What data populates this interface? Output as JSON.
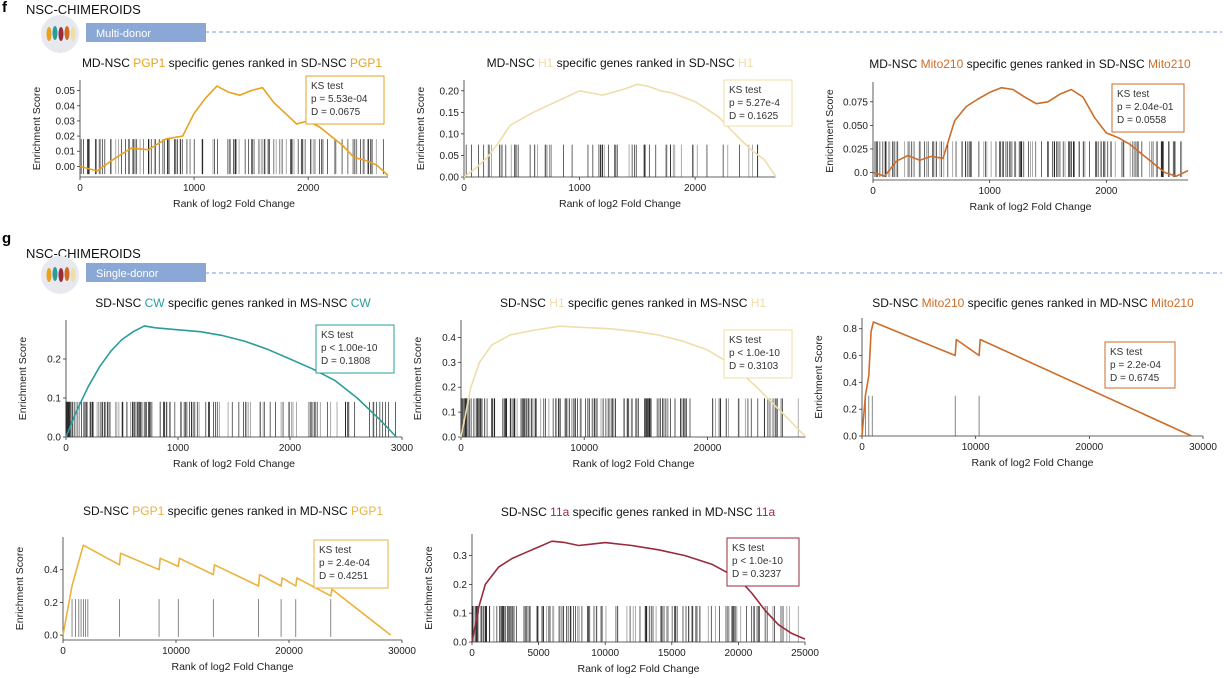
{
  "sections": [
    {
      "letter": "f",
      "title": "NSC-CHIMEROIDS",
      "pill": "Multi-donor"
    },
    {
      "letter": "g",
      "title": "NSC-CHIMEROIDS",
      "pill": "Single-donor"
    }
  ],
  "chart_data": [
    {
      "type": "line",
      "title_parts": [
        "MD-NSC ",
        "PGP1",
        " specific genes ranked in SD-NSC ",
        "PGP1"
      ],
      "color": "#E8A21F",
      "xlabel": "Rank of log2 Fold Change",
      "ylabel": "Enrichment Score",
      "xlim": [
        0,
        2700
      ],
      "ylim": [
        -0.007,
        0.057
      ],
      "xticks": [
        0,
        1000,
        2000
      ],
      "xtick_labels": [
        "0",
        "1000",
        "2000"
      ],
      "yticks": [
        0,
        0.01,
        0.02,
        0.03,
        0.04,
        0.05
      ],
      "ytick_labels": [
        "0.00",
        "0.01",
        "0.02",
        "0.03",
        "0.04",
        "0.05"
      ],
      "x": [
        0,
        150,
        300,
        450,
        600,
        750,
        900,
        1000,
        1100,
        1200,
        1300,
        1400,
        1500,
        1600,
        1700,
        1800,
        1900,
        2000,
        2100,
        2200,
        2300,
        2400,
        2500,
        2600,
        2700
      ],
      "y": [
        0.0,
        -0.003,
        0.005,
        0.012,
        0.011,
        0.018,
        0.02,
        0.035,
        0.045,
        0.053,
        0.049,
        0.047,
        0.05,
        0.052,
        0.042,
        0.035,
        0.028,
        0.03,
        0.026,
        0.02,
        0.014,
        0.006,
        0.004,
        0.001,
        -0.006
      ],
      "ks_test": {
        "label": "KS test",
        "p": "p = 5.53e-04",
        "D": "D = 0.0675"
      }
    },
    {
      "type": "line",
      "title_parts": [
        "MD-NSC ",
        "H1",
        " specific genes ranked in SD-NSC ",
        "H1"
      ],
      "color": "#EFDDAA",
      "xlabel": "Rank of log2 Fold Change",
      "ylabel": "Enrichment Score",
      "xlim": [
        0,
        2700
      ],
      "ylim": [
        0,
        0.225
      ],
      "xticks": [
        0,
        1000,
        2000
      ],
      "xtick_labels": [
        "0",
        "1000",
        "2000"
      ],
      "yticks": [
        0,
        0.05,
        0.1,
        0.15,
        0.2
      ],
      "ytick_labels": [
        "0.00",
        "0.05",
        "0.10",
        "0.15",
        "0.20"
      ],
      "x": [
        0,
        100,
        200,
        300,
        400,
        600,
        800,
        1000,
        1200,
        1400,
        1500,
        1600,
        1700,
        1800,
        2000,
        2200,
        2400,
        2500,
        2600,
        2700
      ],
      "y": [
        0.0,
        0.02,
        0.045,
        0.08,
        0.12,
        0.15,
        0.175,
        0.2,
        0.19,
        0.205,
        0.215,
        0.21,
        0.2,
        0.195,
        0.175,
        0.14,
        0.085,
        0.06,
        0.04,
        0.0
      ],
      "ks_test": {
        "label": "KS test",
        "p": "p = 5.27e-4",
        "D": "D = 0.1625"
      }
    },
    {
      "type": "line",
      "title_parts": [
        "MD-NSC ",
        "Mito210",
        " specific genes ranked in SD-NSC ",
        "Mito210"
      ],
      "color": "#CD6D2A",
      "xlabel": "Rank of log2 Fold Change",
      "ylabel": "Enrichment Score",
      "xlim": [
        0,
        2700
      ],
      "ylim": [
        -0.008,
        0.096
      ],
      "xticks": [
        0,
        1000,
        2000
      ],
      "xtick_labels": [
        "0",
        "1000",
        "2000"
      ],
      "yticks": [
        0,
        0.025,
        0.05,
        0.075
      ],
      "ytick_labels": [
        "0.0",
        "0.025",
        "0.050",
        "0.075"
      ],
      "x": [
        0,
        100,
        200,
        300,
        400,
        500,
        600,
        700,
        800,
        900,
        1000,
        1100,
        1200,
        1300,
        1400,
        1500,
        1600,
        1700,
        1800,
        1900,
        2000,
        2100,
        2200,
        2300,
        2400,
        2500,
        2600,
        2700
      ],
      "y": [
        0.0,
        -0.004,
        0.012,
        0.018,
        0.013,
        0.017,
        0.015,
        0.055,
        0.07,
        0.078,
        0.085,
        0.09,
        0.088,
        0.08,
        0.073,
        0.075,
        0.083,
        0.088,
        0.08,
        0.058,
        0.042,
        0.037,
        0.03,
        0.02,
        0.01,
        0.0,
        -0.004,
        0.002
      ],
      "ks_test": {
        "label": "KS test",
        "p": "p = 2.04e-01",
        "D": "D = 0.0558"
      }
    },
    {
      "type": "line",
      "title_parts": [
        "SD-NSC ",
        "CW",
        " specific genes ranked in MS-NSC ",
        "CW"
      ],
      "color": "#2A9D9B",
      "xlabel": "Rank of log2 Fold Change",
      "ylabel": "Enrichment Score",
      "xlim": [
        0,
        3000
      ],
      "ylim": [
        0,
        0.3
      ],
      "xticks": [
        0,
        1000,
        2000,
        3000
      ],
      "xtick_labels": [
        "0",
        "1000",
        "2000",
        "3000"
      ],
      "yticks": [
        0,
        0.1,
        0.2
      ],
      "ytick_labels": [
        "0.0",
        "0.1",
        "0.2"
      ],
      "x": [
        0,
        100,
        200,
        300,
        400,
        500,
        600,
        700,
        800,
        1000,
        1200,
        1400,
        1600,
        1800,
        2000,
        2200,
        2400,
        2600,
        2800,
        2950
      ],
      "y": [
        0.0,
        0.07,
        0.13,
        0.18,
        0.22,
        0.25,
        0.27,
        0.285,
        0.28,
        0.275,
        0.27,
        0.26,
        0.245,
        0.225,
        0.2,
        0.175,
        0.145,
        0.1,
        0.045,
        0.0
      ],
      "ks_test": {
        "label": "KS test",
        "p": "p < 1.00e-10",
        "D": "D = 0.1808"
      }
    },
    {
      "type": "line",
      "title_parts": [
        "SD-NSC ",
        "H1",
        " specific genes ranked in MS-NSC ",
        "H1"
      ],
      "color": "#EFDDAA",
      "xlabel": "Rank of log2 Fold Change",
      "ylabel": "Enrichment Score",
      "xlim": [
        0,
        28000
      ],
      "ylim": [
        0,
        0.47
      ],
      "xticks": [
        0,
        10000,
        20000
      ],
      "xtick_labels": [
        "0",
        "10000",
        "20000"
      ],
      "yticks": [
        0,
        0.1,
        0.2,
        0.3,
        0.4
      ],
      "ytick_labels": [
        "0.0",
        "0.1",
        "0.2",
        "0.3",
        "0.4"
      ],
      "x": [
        0,
        800,
        1500,
        2500,
        4000,
        6000,
        8000,
        10000,
        12000,
        14000,
        16000,
        18000,
        20000,
        22000,
        24000,
        26000,
        28000
      ],
      "y": [
        0.0,
        0.2,
        0.3,
        0.37,
        0.41,
        0.43,
        0.445,
        0.44,
        0.435,
        0.425,
        0.41,
        0.385,
        0.35,
        0.29,
        0.2,
        0.1,
        0.0
      ],
      "ks_test": {
        "label": "KS test",
        "p": "p < 1.0e-10",
        "D": "D = 0.3103"
      }
    },
    {
      "type": "line",
      "title_parts": [
        "SD-NSC ",
        "Mito210",
        " specific genes ranked in MD-NSC ",
        "Mito210"
      ],
      "color": "#CD6D2A",
      "xlabel": "Rank of log2 Fold Change",
      "ylabel": "Enrichment Score",
      "xlim": [
        0,
        30000
      ],
      "ylim": [
        0,
        0.88
      ],
      "xticks": [
        0,
        10000,
        20000,
        30000
      ],
      "xtick_labels": [
        "0",
        "10000",
        "20000",
        "30000"
      ],
      "yticks": [
        0,
        0.2,
        0.4,
        0.6,
        0.8
      ],
      "ytick_labels": [
        "0.0",
        "0.2",
        "0.4",
        "0.6",
        "0.8"
      ],
      "x": [
        0,
        300,
        600,
        800,
        1000,
        8200,
        8300,
        10300,
        10400,
        29000
      ],
      "y": [
        0.0,
        0.3,
        0.45,
        0.78,
        0.85,
        0.6,
        0.72,
        0.6,
        0.72,
        0.0
      ],
      "ks_test": {
        "label": "KS test",
        "p": "p = 2.2e-04",
        "D": "D = 0.6745"
      }
    },
    {
      "type": "line",
      "title_parts": [
        "SD-NSC ",
        "PGP1",
        " specific genes ranked in MD-NSC ",
        "PGP1"
      ],
      "color": "#EBB23E",
      "xlabel": "Rank of log2 Fold Change",
      "ylabel": "Enrichment Score",
      "xlim": [
        0,
        30000
      ],
      "ylim": [
        -0.03,
        0.6
      ],
      "xticks": [
        0,
        10000,
        20000,
        30000
      ],
      "xtick_labels": [
        "0",
        "10000",
        "20000",
        "30000"
      ],
      "yticks": [
        0,
        0.2,
        0.4
      ],
      "ytick_labels": [
        "0.0",
        "0.2",
        "0.4"
      ],
      "x": [
        0,
        800,
        1800,
        5000,
        5100,
        8500,
        8600,
        10200,
        10300,
        13300,
        13400,
        17300,
        17400,
        19300,
        19400,
        20600,
        20700,
        23700,
        23800,
        29000
      ],
      "y": [
        0.0,
        0.3,
        0.55,
        0.43,
        0.5,
        0.4,
        0.47,
        0.42,
        0.47,
        0.37,
        0.43,
        0.3,
        0.37,
        0.3,
        0.35,
        0.3,
        0.35,
        0.24,
        0.28,
        0.0
      ],
      "ks_test": {
        "label": "KS test",
        "p": "p = 2.4e-04",
        "D": "D = 0.4251"
      }
    },
    {
      "type": "line",
      "title_parts": [
        "SD-NSC ",
        "11a",
        " specific genes ranked in MD-NSC ",
        "11a"
      ],
      "color": "#9A2B3D",
      "xlabel": "Rank of log2 Fold Change",
      "ylabel": "Enrichment Score",
      "xlim": [
        0,
        25000
      ],
      "ylim": [
        0,
        0.375
      ],
      "xticks": [
        0,
        5000,
        10000,
        15000,
        20000,
        25000
      ],
      "xtick_labels": [
        "0",
        "5000",
        "10000",
        "15000",
        "20000",
        "25000"
      ],
      "yticks": [
        0,
        0.1,
        0.2,
        0.3
      ],
      "ytick_labels": [
        "0.0",
        "0.1",
        "0.2",
        "0.3"
      ],
      "x": [
        0,
        500,
        1000,
        2000,
        3000,
        4000,
        5000,
        6000,
        7000,
        8000,
        9000,
        10000,
        12000,
        14000,
        16000,
        18000,
        20000,
        21000,
        22000,
        23000,
        24000,
        25000
      ],
      "y": [
        0.0,
        0.12,
        0.2,
        0.26,
        0.29,
        0.31,
        0.33,
        0.35,
        0.345,
        0.335,
        0.34,
        0.345,
        0.335,
        0.32,
        0.3,
        0.27,
        0.22,
        0.17,
        0.11,
        0.06,
        0.03,
        0.01
      ],
      "ks_test": {
        "label": "KS test",
        "p": "p < 1.0e-10",
        "D": "D = 0.3237"
      }
    }
  ]
}
